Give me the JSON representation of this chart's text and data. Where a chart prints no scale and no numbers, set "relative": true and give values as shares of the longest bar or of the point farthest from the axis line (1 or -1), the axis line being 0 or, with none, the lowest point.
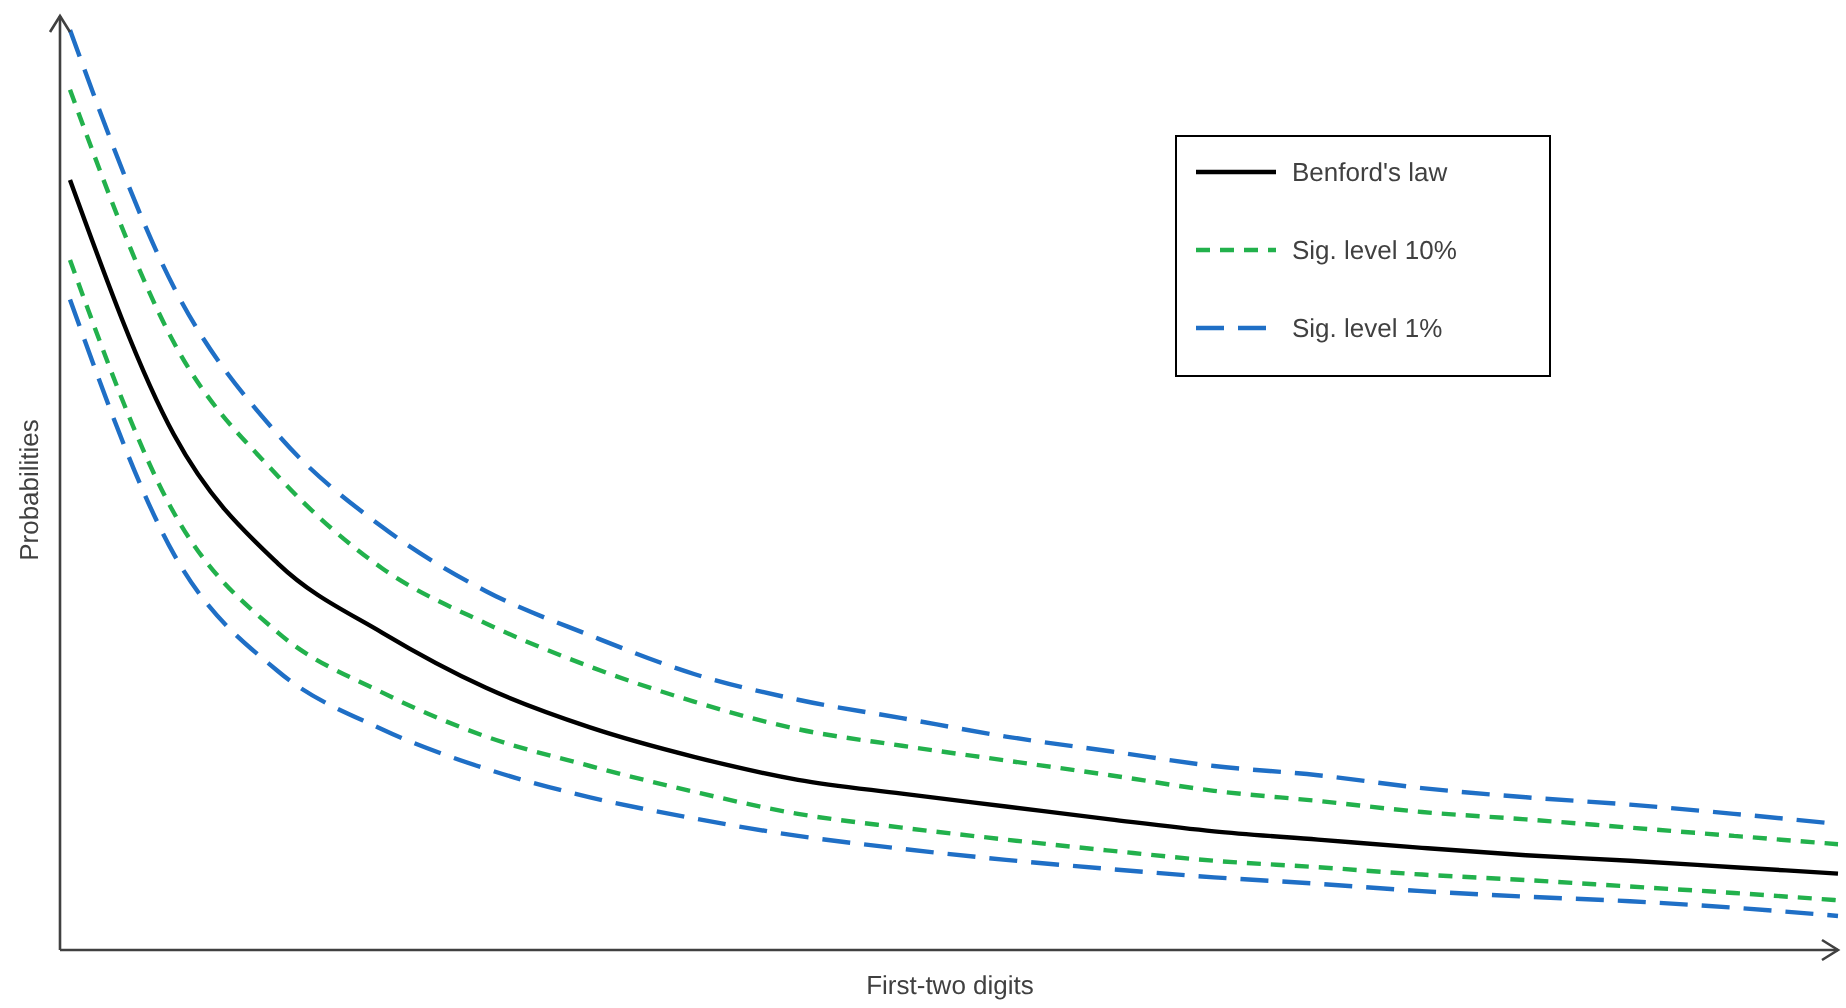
{
  "chart_data": {
    "type": "line",
    "relative": true,
    "xlabel": "First-two digits",
    "ylabel": "Probabilities",
    "legend": "top right",
    "categories": [
      null,
      null,
      null,
      null,
      null,
      null,
      null,
      null,
      null,
      null,
      null,
      null,
      null,
      null,
      null,
      null,
      null,
      null
    ],
    "series": [
      {
        "name": "Benford's law",
        "color": "#000000",
        "line_style": "solid",
        "values": [
          0.837,
          0.56,
          0.42,
          0.345,
          0.285,
          0.242,
          0.21,
          0.185,
          0.17,
          0.156,
          0.142,
          0.129,
          0.12,
          0.111,
          0.103,
          0.097,
          0.09,
          0.083
        ]
      },
      {
        "name": "Sig. level 10%",
        "color": "#22b14c",
        "line_style": "dashed",
        "values": [
          0.935,
          0.66,
          0.515,
          0.415,
          0.355,
          0.308,
          0.27,
          0.24,
          0.222,
          0.206,
          0.19,
          0.173,
          0.162,
          0.15,
          0.142,
          0.133,
          0.124,
          0.115
        ]
      },
      {
        "color": "#22b14c",
        "line_style": "dashed",
        "values": [
          0.75,
          0.475,
          0.345,
          0.28,
          0.232,
          0.2,
          0.172,
          0.148,
          0.133,
          0.12,
          0.108,
          0.097,
          0.09,
          0.082,
          0.076,
          0.069,
          0.062,
          0.054
        ]
      },
      {
        "name": "Sig. level 1%",
        "color": "#1f6fc6",
        "line_style": "dashed",
        "values": [
          1.0,
          0.72,
          0.56,
          0.46,
          0.39,
          0.342,
          0.3,
          0.272,
          0.252,
          0.232,
          0.216,
          0.2,
          0.19,
          0.176,
          0.166,
          0.158,
          0.148,
          0.137
        ]
      },
      {
        "color": "#1f6fc6",
        "line_style": "dashed",
        "values": [
          0.707,
          0.43,
          0.303,
          0.24,
          0.197,
          0.166,
          0.143,
          0.124,
          0.11,
          0.098,
          0.088,
          0.079,
          0.072,
          0.064,
          0.058,
          0.053,
          0.046,
          0.037
        ]
      }
    ]
  }
}
